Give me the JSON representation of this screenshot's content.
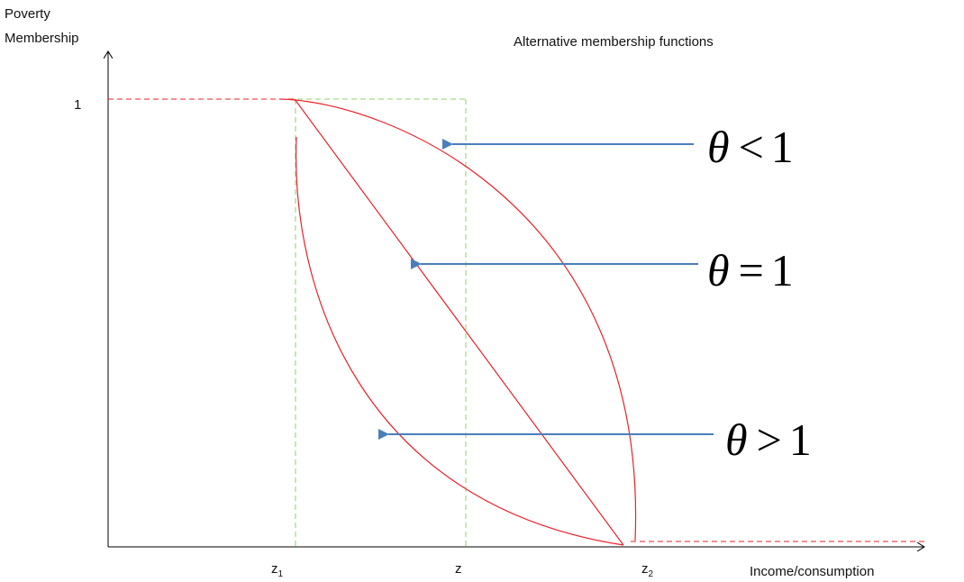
{
  "title": "Alternative  membership functions",
  "y_axis_label_line1": "Poverty",
  "y_axis_label_line2": "Membership",
  "x_axis_label": "Income/consumption",
  "y_tick_one": "1",
  "x_ticks": {
    "z1": {
      "base": "z",
      "sub": "1"
    },
    "z": {
      "base": "z"
    },
    "z2": {
      "base": "z",
      "sub": "2"
    }
  },
  "annotations": [
    {
      "symbol": "θ",
      "relation": "<",
      "value": "1"
    },
    {
      "symbol": "θ",
      "relation": "=",
      "value": "1"
    },
    {
      "symbol": "θ",
      "relation": ">",
      "value": "1"
    }
  ],
  "colors": {
    "curve": "#e8222a",
    "guide": "#8ed26a",
    "arrow": "#4a7ebb",
    "axis": "#000000"
  }
}
